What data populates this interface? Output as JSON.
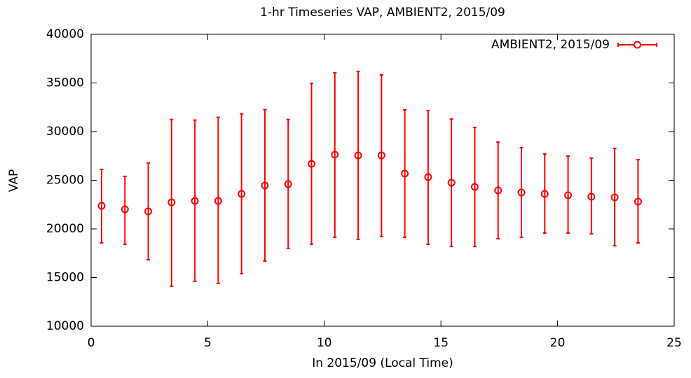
{
  "chart_data": {
    "type": "errorbar",
    "title": "1-hr Timeseries VAP, AMBIENT2, 2015/09",
    "x_label": "In 2015/09 (Local Time)",
    "y_label": "VAP",
    "xlim": [
      0,
      25
    ],
    "xticks": [
      0,
      5,
      10,
      15,
      20,
      25
    ],
    "ylim": [
      10000,
      40000
    ],
    "yticks": [
      10000,
      15000,
      20000,
      25000,
      30000,
      35000,
      40000
    ],
    "grid": false,
    "legend": "top-right",
    "series": [
      {
        "name": "AMBIENT2, 2015/09",
        "color": "#ff0000",
        "x": [
          0.45,
          1.45,
          2.45,
          3.45,
          4.45,
          5.45,
          6.45,
          7.45,
          8.45,
          9.45,
          10.45,
          11.45,
          12.45,
          13.45,
          14.45,
          15.45,
          16.45,
          17.45,
          18.45,
          19.45,
          20.45,
          21.45,
          22.45,
          23.45
        ],
        "values": [
          22370,
          22010,
          21800,
          22730,
          22880,
          22880,
          23600,
          24460,
          24600,
          26690,
          27630,
          27550,
          27550,
          25680,
          25320,
          24750,
          24320,
          23960,
          23740,
          23600,
          23450,
          23310,
          23240,
          22810
        ],
        "low": [
          18560,
          18420,
          16830,
          14100,
          14600,
          14390,
          15400,
          16690,
          17990,
          18420,
          19140,
          18920,
          19210,
          19140,
          18420,
          18200,
          18200,
          18990,
          19140,
          19570,
          19570,
          19500,
          18270,
          18560
        ],
        "high": [
          26115,
          25400,
          26770,
          31250,
          31180,
          31470,
          31830,
          32260,
          31250,
          34960,
          36040,
          36190,
          35830,
          32230,
          32160,
          31290,
          30430,
          28920,
          28350,
          27700,
          27480,
          27270,
          28270,
          27120
        ]
      }
    ]
  }
}
